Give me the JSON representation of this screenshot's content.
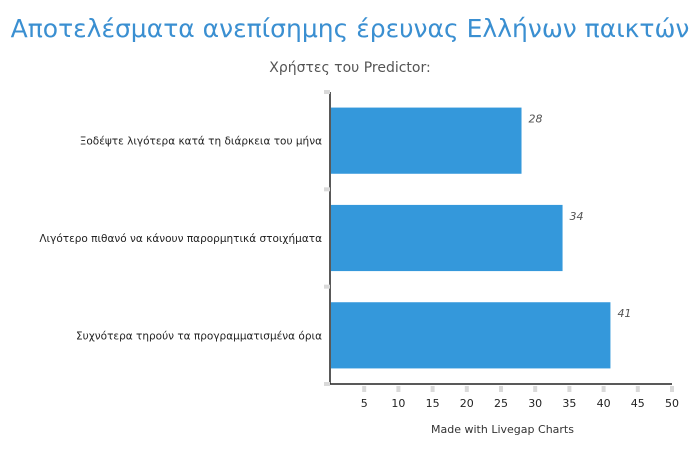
{
  "chart_data": {
    "type": "bar",
    "orientation": "horizontal",
    "title": "Αποτελέσματα ανεπίσημης έρευνας Ελλήνων παικτών",
    "subtitle": "Χρήστες του Predictor:",
    "categories": [
      "Ξοδέψτε λιγότερα κατά τη διάρκεια του μήνα",
      "Λιγότερο πιθανό να κάνουν παρορμητικά στοιχήματα",
      "Συχνότερα τηρούν τα προγραμματισμένα όρια"
    ],
    "values": [
      28,
      34,
      41
    ],
    "value_labels": [
      "28",
      "34",
      "41"
    ],
    "xlim": [
      0,
      50
    ],
    "xticks": [
      5,
      10,
      15,
      20,
      25,
      30,
      35,
      40,
      45,
      50
    ],
    "bar_color": "#3498db",
    "grid": false
  },
  "footer": "Made with Livegap Charts"
}
